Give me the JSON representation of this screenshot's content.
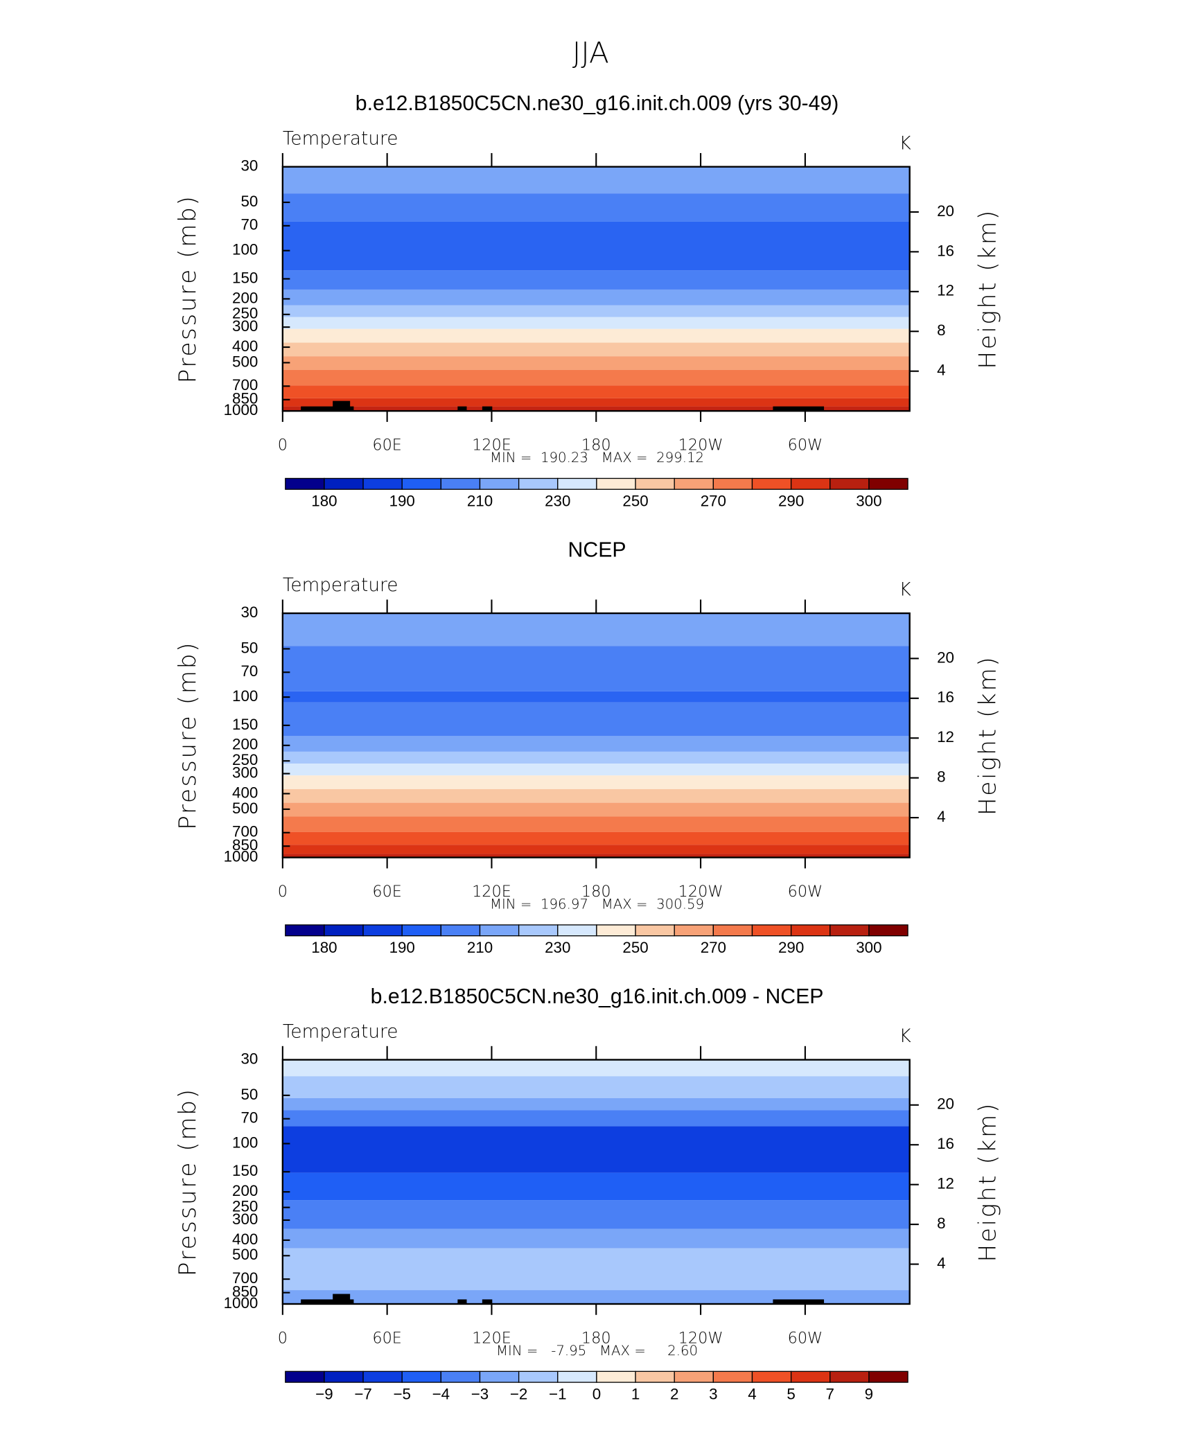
{
  "title": "JJA",
  "chart_data": [
    {
      "type": "contour",
      "title": "b.e12.B1850C5CN.ne30_g16.init.ch.009 (yrs 30-49)",
      "subtitle": "Temperature",
      "units": "K",
      "ylabel": "Pressure (mb)",
      "y2label": "Height (km)",
      "log_scale": true,
      "ylim": [
        1000,
        30
      ],
      "yticks": [
        30,
        50,
        70,
        100,
        150,
        200,
        250,
        300,
        400,
        500,
        700,
        850,
        1000
      ],
      "y2ticks": [
        4,
        8,
        12,
        16,
        20
      ],
      "xlim": [
        0,
        360
      ],
      "xticks": [
        0,
        {
          "value": 60,
          "label": "60E"
        },
        {
          "value": 120,
          "label": "120E"
        },
        180,
        {
          "value": 240,
          "label": "120W"
        },
        {
          "value": 300,
          "label": "60W"
        }
      ],
      "stats": "MIN =  190.23   MAX =  299.12",
      "bands": [
        {
          "p": 30,
          "color": "#7aa6f8"
        },
        {
          "p": 44,
          "color": "#4a80f5"
        },
        {
          "p": 66,
          "color": "#2a64f2"
        },
        {
          "p": 133,
          "color": "#4a80f5"
        },
        {
          "p": 175,
          "color": "#7aa6f8"
        },
        {
          "p": 219,
          "color": "#a8c8fc"
        },
        {
          "p": 260,
          "color": "#d6e8fd"
        },
        {
          "p": 308,
          "color": "#fdebd6"
        },
        {
          "p": 375,
          "color": "#f9c7a3"
        },
        {
          "p": 456,
          "color": "#f7a277"
        },
        {
          "p": 555,
          "color": "#f47a4c"
        },
        {
          "p": 693,
          "color": "#ef5126"
        },
        {
          "p": 833,
          "color": "#dc3414"
        },
        {
          "p": 937,
          "color": "#c42412"
        }
      ],
      "colorbar": {
        "labels": [
          180,
          190,
          210,
          230,
          250,
          270,
          290,
          300
        ],
        "colors": [
          "#03008c",
          "#0020c0",
          "#0d3ee0",
          "#1f5ff5",
          "#4a80f5",
          "#7aa6f8",
          "#a8c8fc",
          "#d6e8fd",
          "#fdebd6",
          "#f9c7a3",
          "#f7a277",
          "#f47a4c",
          "#ef5126",
          "#dc3414",
          "#b82010",
          "#800000"
        ]
      }
    },
    {
      "type": "contour",
      "title": "NCEP",
      "subtitle": "Temperature",
      "units": "K",
      "ylabel": "Pressure (mb)",
      "y2label": "Height (km)",
      "log_scale": true,
      "ylim": [
        1000,
        30
      ],
      "yticks": [
        30,
        50,
        70,
        100,
        150,
        200,
        250,
        300,
        400,
        500,
        700,
        850,
        1000
      ],
      "y2ticks": [
        4,
        8,
        12,
        16,
        20
      ],
      "xlim": [
        0,
        360
      ],
      "xticks": [
        0,
        {
          "value": 60,
          "label": "60E"
        },
        {
          "value": 120,
          "label": "120E"
        },
        180,
        {
          "value": 240,
          "label": "120W"
        },
        {
          "value": 300,
          "label": "60W"
        }
      ],
      "stats": "MIN =  196.97   MAX =  300.59",
      "bands": [
        {
          "p": 30,
          "color": "#7aa6f8"
        },
        {
          "p": 48,
          "color": "#4a80f5"
        },
        {
          "p": 92,
          "color": "#2a64f2"
        },
        {
          "p": 108,
          "color": "#4a80f5"
        },
        {
          "p": 175,
          "color": "#7aa6f8"
        },
        {
          "p": 219,
          "color": "#a8c8fc"
        },
        {
          "p": 260,
          "color": "#d6e8fd"
        },
        {
          "p": 308,
          "color": "#fdebd6"
        },
        {
          "p": 375,
          "color": "#f9c7a3"
        },
        {
          "p": 456,
          "color": "#f7a277"
        },
        {
          "p": 555,
          "color": "#f47a4c"
        },
        {
          "p": 693,
          "color": "#ef5126"
        },
        {
          "p": 833,
          "color": "#dc3414"
        },
        {
          "p": 950,
          "color": "#c42412"
        }
      ],
      "colorbar": {
        "labels": [
          180,
          190,
          210,
          230,
          250,
          270,
          290,
          300
        ],
        "colors": [
          "#03008c",
          "#0020c0",
          "#0d3ee0",
          "#1f5ff5",
          "#4a80f5",
          "#7aa6f8",
          "#a8c8fc",
          "#d6e8fd",
          "#fdebd6",
          "#f9c7a3",
          "#f7a277",
          "#f47a4c",
          "#ef5126",
          "#dc3414",
          "#b82010",
          "#800000"
        ]
      }
    },
    {
      "type": "contour",
      "title": "b.e12.B1850C5CN.ne30_g16.init.ch.009 - NCEP",
      "subtitle": "Temperature",
      "units": "K",
      "ylabel": "Pressure (mb)",
      "y2label": "Height (km)",
      "log_scale": true,
      "ylim": [
        1000,
        30
      ],
      "yticks": [
        30,
        50,
        70,
        100,
        150,
        200,
        250,
        300,
        400,
        500,
        700,
        850,
        1000
      ],
      "y2ticks": [
        4,
        8,
        12,
        16,
        20
      ],
      "xlim": [
        0,
        360
      ],
      "xticks": [
        0,
        {
          "value": 60,
          "label": "60E"
        },
        {
          "value": 120,
          "label": "120E"
        },
        180,
        {
          "value": 240,
          "label": "120W"
        },
        {
          "value": 300,
          "label": "60W"
        }
      ],
      "stats": "MIN =   -7.95   MAX =     2.60",
      "bands": [
        {
          "p": 30,
          "color": "#d6e8fd"
        },
        {
          "p": 38,
          "color": "#a8c8fc"
        },
        {
          "p": 52,
          "color": "#7aa6f8"
        },
        {
          "p": 62,
          "color": "#4a80f5"
        },
        {
          "p": 78,
          "color": "#0d3ee0"
        },
        {
          "p": 152,
          "color": "#1f5ff5"
        },
        {
          "p": 225,
          "color": "#4a80f5"
        },
        {
          "p": 340,
          "color": "#7aa6f8"
        },
        {
          "p": 450,
          "color": "#a8c8fc"
        },
        {
          "p": 820,
          "color": "#7aa6f8"
        }
      ],
      "colorbar": {
        "labels": [
          "−9",
          "−7",
          "−5",
          "−4",
          "−3",
          "−2",
          "−1",
          0,
          1,
          2,
          3,
          4,
          5,
          7,
          9
        ],
        "colors": [
          "#03008c",
          "#0020c0",
          "#0d3ee0",
          "#1f5ff5",
          "#4a80f5",
          "#7aa6f8",
          "#a8c8fc",
          "#d6e8fd",
          "#fdebd6",
          "#f9c7a3",
          "#f7a277",
          "#f47a4c",
          "#ef5126",
          "#dc3414",
          "#b82010",
          "#800000"
        ]
      }
    }
  ]
}
